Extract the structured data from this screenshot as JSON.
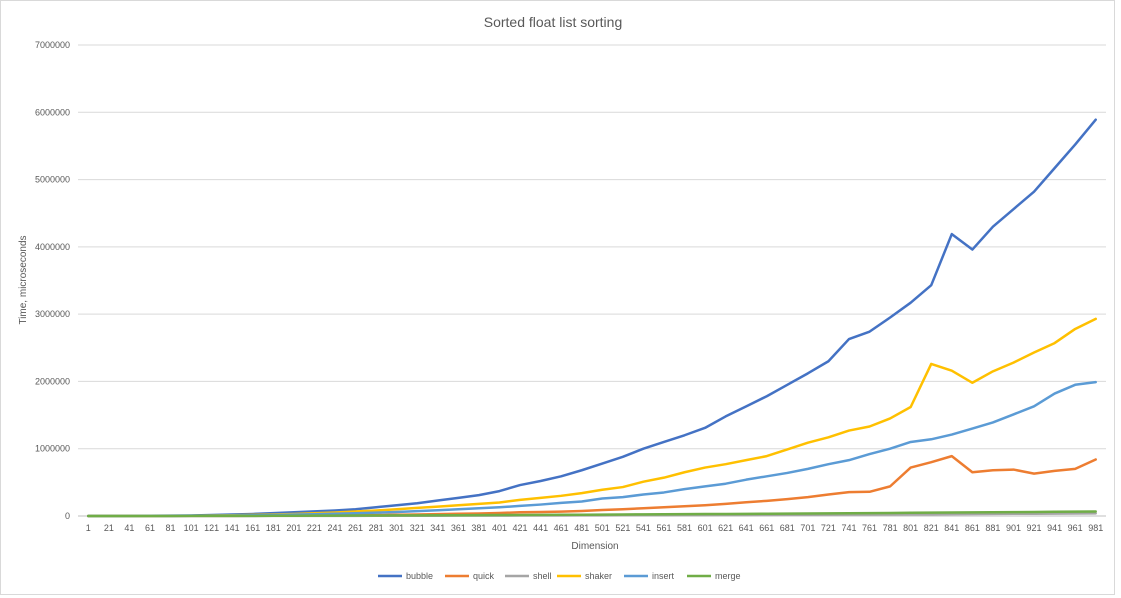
{
  "chart_data": {
    "type": "line",
    "title": "Sorted float list sorting",
    "xlabel": "Dimension",
    "ylabel": "Time, microseconds",
    "ylim": [
      0,
      7000000
    ],
    "yticks": [
      0,
      1000000,
      2000000,
      3000000,
      4000000,
      5000000,
      6000000,
      7000000
    ],
    "grid": true,
    "legend_position": "bottom",
    "x": [
      1,
      21,
      41,
      61,
      81,
      101,
      121,
      141,
      161,
      181,
      201,
      221,
      241,
      261,
      281,
      301,
      321,
      341,
      361,
      381,
      401,
      421,
      441,
      461,
      481,
      501,
      521,
      541,
      561,
      581,
      601,
      621,
      641,
      661,
      681,
      701,
      721,
      741,
      761,
      781,
      801,
      821,
      841,
      861,
      881,
      901,
      921,
      941,
      961,
      981
    ],
    "series": [
      {
        "name": "bubble",
        "color": "#4472C4",
        "values": [
          0,
          500,
          1500,
          3000,
          5000,
          8000,
          14000,
          22000,
          30000,
          42000,
          55000,
          68000,
          82000,
          100000,
          130000,
          160000,
          190000,
          230000,
          270000,
          310000,
          370000,
          460000,
          520000,
          590000,
          680000,
          780000,
          880000,
          1000000,
          1100000,
          1200000,
          1310000,
          1480000,
          1630000,
          1780000,
          1950000,
          2120000,
          2300000,
          2630000,
          2740000,
          2950000,
          3170000,
          3430000,
          4190000,
          3960000,
          4300000,
          4560000,
          4820000,
          5170000,
          5520000,
          5890000
        ]
      },
      {
        "name": "quick",
        "color": "#ED7D31",
        "values": [
          0,
          100,
          300,
          500,
          800,
          1200,
          1800,
          2500,
          3500,
          5000,
          6500,
          8000,
          10000,
          12000,
          15000,
          18000,
          22000,
          28000,
          33000,
          38000,
          45000,
          55000,
          60000,
          65000,
          75000,
          90000,
          100000,
          115000,
          130000,
          145000,
          160000,
          180000,
          205000,
          225000,
          250000,
          280000,
          320000,
          355000,
          360000,
          440000,
          720000,
          800000,
          890000,
          650000,
          680000,
          690000,
          630000,
          670000,
          700000,
          840000
        ]
      },
      {
        "name": "shell",
        "color": "#A5A5A5",
        "values": [
          0,
          50,
          100,
          200,
          300,
          400,
          500,
          700,
          900,
          1100,
          1400,
          1700,
          2000,
          2400,
          2800,
          3200,
          3700,
          4200,
          4700,
          5300,
          5900,
          6500,
          7200,
          7900,
          8600,
          9400,
          10200,
          11000,
          11900,
          12800,
          13800,
          14800,
          15800,
          16900,
          18000,
          19100,
          20300,
          21500,
          22800,
          24100,
          25400,
          26800,
          28200,
          29600,
          31100,
          32600,
          34200,
          35800,
          37400,
          39100
        ]
      },
      {
        "name": "shaker",
        "color": "#FFC000",
        "values": [
          0,
          300,
          900,
          1800,
          3000,
          4500,
          7000,
          11000,
          16000,
          22000,
          30000,
          40000,
          52000,
          66000,
          82000,
          100000,
          120000,
          140000,
          160000,
          180000,
          200000,
          240000,
          270000,
          300000,
          340000,
          390000,
          430000,
          510000,
          570000,
          650000,
          720000,
          770000,
          830000,
          890000,
          990000,
          1090000,
          1170000,
          1270000,
          1330000,
          1450000,
          1620000,
          2260000,
          2160000,
          1980000,
          2150000,
          2280000,
          2430000,
          2570000,
          2780000,
          2930000
        ]
      },
      {
        "name": "insert",
        "color": "#5B9BD5",
        "values": [
          0,
          200,
          600,
          1200,
          2000,
          3000,
          5000,
          8000,
          11000,
          15000,
          20000,
          26000,
          33000,
          41000,
          50000,
          60000,
          72000,
          85000,
          100000,
          115000,
          130000,
          150000,
          170000,
          195000,
          215000,
          260000,
          280000,
          320000,
          350000,
          400000,
          440000,
          480000,
          540000,
          590000,
          640000,
          700000,
          770000,
          830000,
          920000,
          1000000,
          1100000,
          1140000,
          1210000,
          1300000,
          1390000,
          1510000,
          1630000,
          1820000,
          1950000,
          1990000
        ]
      },
      {
        "name": "merge",
        "color": "#70AD47",
        "values": [
          0,
          100,
          300,
          500,
          700,
          1000,
          1500,
          2000,
          2600,
          3300,
          4000,
          4800,
          5600,
          6500,
          7500,
          8500,
          9500,
          10600,
          11700,
          12900,
          14100,
          15400,
          16700,
          18100,
          19500,
          21000,
          22500,
          24000,
          25600,
          27200,
          28900,
          30600,
          32300,
          34100,
          35900,
          37700,
          39600,
          41500,
          43400,
          45400,
          47400,
          49400,
          51500,
          53600,
          55700,
          57800,
          60000,
          62200,
          64400,
          66600
        ]
      }
    ]
  }
}
